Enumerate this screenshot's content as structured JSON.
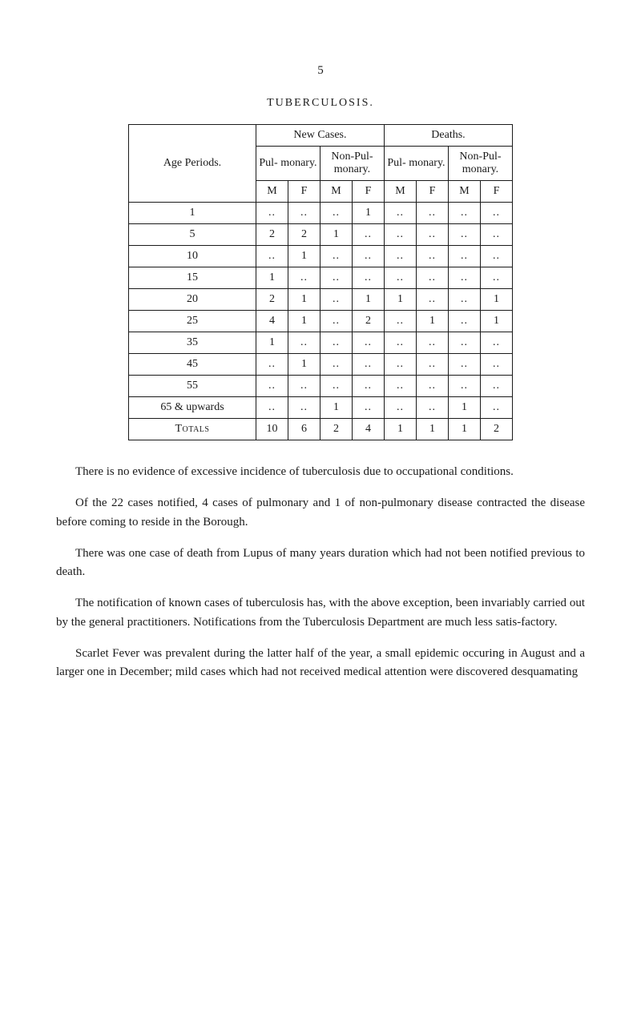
{
  "pageNumber": "5",
  "tableTitle": "TUBERCULOSIS.",
  "headers": {
    "agePeriods": "Age Periods.",
    "newCases": "New Cases.",
    "deaths": "Deaths.",
    "pulmonary": "Pul-\nmonary.",
    "nonPulmonary": "Non-Pul-\nmonary.",
    "nonPulmonaryD": "Non-Pul-\nmonary.",
    "m": "M",
    "f": "F"
  },
  "dotdot": ". .",
  "rows": [
    {
      "age": "1",
      "nc_p_m": "..",
      "nc_p_f": "..",
      "nc_np_m": "..",
      "nc_np_f": "1",
      "d_p_m": "..",
      "d_p_f": "..",
      "d_np_m": "..",
      "d_np_f": ".."
    },
    {
      "age": "5",
      "nc_p_m": "2",
      "nc_p_f": "2",
      "nc_np_m": "1",
      "nc_np_f": "..",
      "d_p_m": "..",
      "d_p_f": "..",
      "d_np_m": "..",
      "d_np_f": ".."
    },
    {
      "age": "10",
      "nc_p_m": "..",
      "nc_p_f": "1",
      "nc_np_m": "..",
      "nc_np_f": "..",
      "d_p_m": "..",
      "d_p_f": "..",
      "d_np_m": "..",
      "d_np_f": ".."
    },
    {
      "age": "15",
      "nc_p_m": "1",
      "nc_p_f": "..",
      "nc_np_m": "..",
      "nc_np_f": "..",
      "d_p_m": "..",
      "d_p_f": "..",
      "d_np_m": "..",
      "d_np_f": ".."
    },
    {
      "age": "20",
      "nc_p_m": "2",
      "nc_p_f": "1",
      "nc_np_m": "..",
      "nc_np_f": "1",
      "d_p_m": "1",
      "d_p_f": "..",
      "d_np_m": "..",
      "d_np_f": "1"
    },
    {
      "age": "25",
      "nc_p_m": "4",
      "nc_p_f": "1",
      "nc_np_m": "..",
      "nc_np_f": "2",
      "d_p_m": "..",
      "d_p_f": "1",
      "d_np_m": "..",
      "d_np_f": "1"
    },
    {
      "age": "35",
      "nc_p_m": "1",
      "nc_p_f": "..",
      "nc_np_m": "..",
      "nc_np_f": "..",
      "d_p_m": "..",
      "d_p_f": "..",
      "d_np_m": "..",
      "d_np_f": ".."
    },
    {
      "age": "45",
      "nc_p_m": "..",
      "nc_p_f": "1",
      "nc_np_m": "..",
      "nc_np_f": "..",
      "d_p_m": "..",
      "d_p_f": "..",
      "d_np_m": "..",
      "d_np_f": ".."
    },
    {
      "age": "55",
      "nc_p_m": "..",
      "nc_p_f": "..",
      "nc_np_m": "..",
      "nc_np_f": "..",
      "d_p_m": "..",
      "d_p_f": "..",
      "d_np_m": "..",
      "d_np_f": ".."
    },
    {
      "age": "65 & upwards",
      "nc_p_m": "..",
      "nc_p_f": "..",
      "nc_np_m": "1",
      "nc_np_f": "..",
      "d_p_m": "..",
      "d_p_f": "..",
      "d_np_m": "1",
      "d_np_f": ".."
    }
  ],
  "totals": {
    "label": "Totals",
    "nc_p_m": "10",
    "nc_p_f": "6",
    "nc_np_m": "2",
    "nc_np_f": "4",
    "d_p_m": "1",
    "d_p_f": "1",
    "d_np_m": "1",
    "d_np_f": "2"
  },
  "paragraphs": [
    "There is no evidence of excessive incidence of tuberculosis due to occupational conditions.",
    "Of the 22 cases notified, 4 cases of pulmonary and 1 of non-pulmonary disease contracted the disease before coming to reside in the Borough.",
    "There was one case of death from Lupus of many years duration which had not been notified previous to death.",
    "The notification of known cases of tuberculosis has, with the above exception, been invariably carried out by the general practitioners. Notifications from the Tuberculosis Department are much less satis-factory.",
    "Scarlet Fever was prevalent during the latter half of the year, a small epidemic occuring in August and a larger one in December; mild cases which had not received medical attention were discovered desquamating"
  ]
}
